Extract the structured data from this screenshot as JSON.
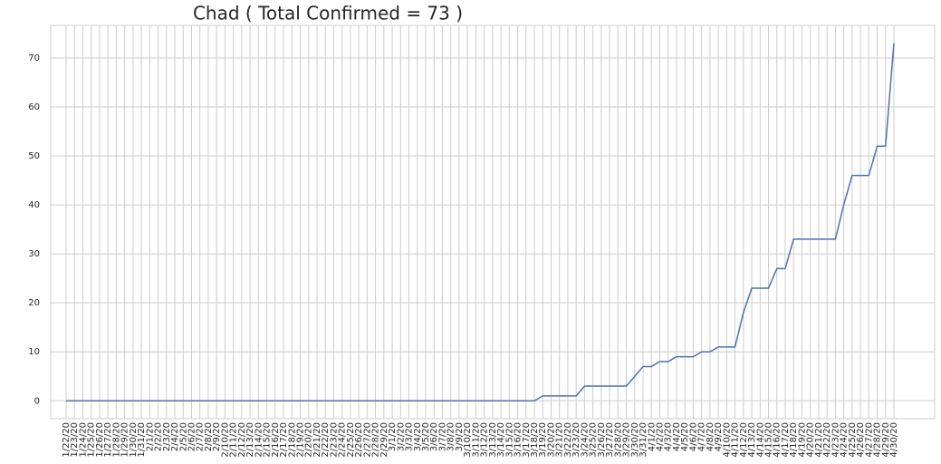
{
  "chart_data": {
    "type": "line",
    "title": "Chad ( Total Confirmed = 73 )",
    "categories": [
      "1/22/20",
      "1/23/20",
      "1/24/20",
      "1/25/20",
      "1/26/20",
      "1/27/20",
      "1/28/20",
      "1/29/20",
      "1/30/20",
      "1/31/20",
      "2/1/20",
      "2/2/20",
      "2/3/20",
      "2/4/20",
      "2/5/20",
      "2/6/20",
      "2/7/20",
      "2/8/20",
      "2/9/20",
      "2/10/20",
      "2/11/20",
      "2/12/20",
      "2/13/20",
      "2/14/20",
      "2/15/20",
      "2/16/20",
      "2/17/20",
      "2/18/20",
      "2/19/20",
      "2/20/20",
      "2/21/20",
      "2/22/20",
      "2/23/20",
      "2/24/20",
      "2/25/20",
      "2/26/20",
      "2/27/20",
      "2/28/20",
      "2/29/20",
      "3/1/20",
      "3/2/20",
      "3/3/20",
      "3/4/20",
      "3/5/20",
      "3/6/20",
      "3/7/20",
      "3/8/20",
      "3/9/20",
      "3/10/20",
      "3/11/20",
      "3/12/20",
      "3/13/20",
      "3/14/20",
      "3/15/20",
      "3/16/20",
      "3/17/20",
      "3/18/20",
      "3/19/20",
      "3/20/20",
      "3/21/20",
      "3/22/20",
      "3/23/20",
      "3/24/20",
      "3/25/20",
      "3/26/20",
      "3/27/20",
      "3/28/20",
      "3/29/20",
      "3/30/20",
      "3/31/20",
      "4/1/20",
      "4/2/20",
      "4/3/20",
      "4/4/20",
      "4/5/20",
      "4/6/20",
      "4/7/20",
      "4/8/20",
      "4/9/20",
      "4/10/20",
      "4/11/20",
      "4/12/20",
      "4/13/20",
      "4/14/20",
      "4/15/20",
      "4/16/20",
      "4/17/20",
      "4/18/20",
      "4/19/20",
      "4/20/20",
      "4/21/20",
      "4/22/20",
      "4/23/20",
      "4/24/20",
      "4/25/20",
      "4/26/20",
      "4/27/20",
      "4/28/20",
      "4/29/20",
      "4/30/20"
    ],
    "series": [
      {
        "color": "#4c72b0",
        "values": [
          0,
          0,
          0,
          0,
          0,
          0,
          0,
          0,
          0,
          0,
          0,
          0,
          0,
          0,
          0,
          0,
          0,
          0,
          0,
          0,
          0,
          0,
          0,
          0,
          0,
          0,
          0,
          0,
          0,
          0,
          0,
          0,
          0,
          0,
          0,
          0,
          0,
          0,
          0,
          0,
          0,
          0,
          0,
          0,
          0,
          0,
          0,
          0,
          0,
          0,
          0,
          0,
          0,
          0,
          0,
          0,
          0,
          1,
          1,
          1,
          1,
          1,
          3,
          3,
          3,
          3,
          3,
          3,
          5,
          7,
          7,
          8,
          8,
          9,
          9,
          9,
          10,
          10,
          11,
          11,
          11,
          18,
          23,
          23,
          23,
          27,
          27,
          33,
          33,
          33,
          33,
          33,
          33,
          40,
          46,
          46,
          46,
          52,
          52,
          73
        ]
      }
    ],
    "ylim": [
      -3.65,
      76.65
    ],
    "yticks": [
      0,
      10,
      20,
      30,
      40,
      50,
      60,
      70
    ],
    "grid": true
  }
}
